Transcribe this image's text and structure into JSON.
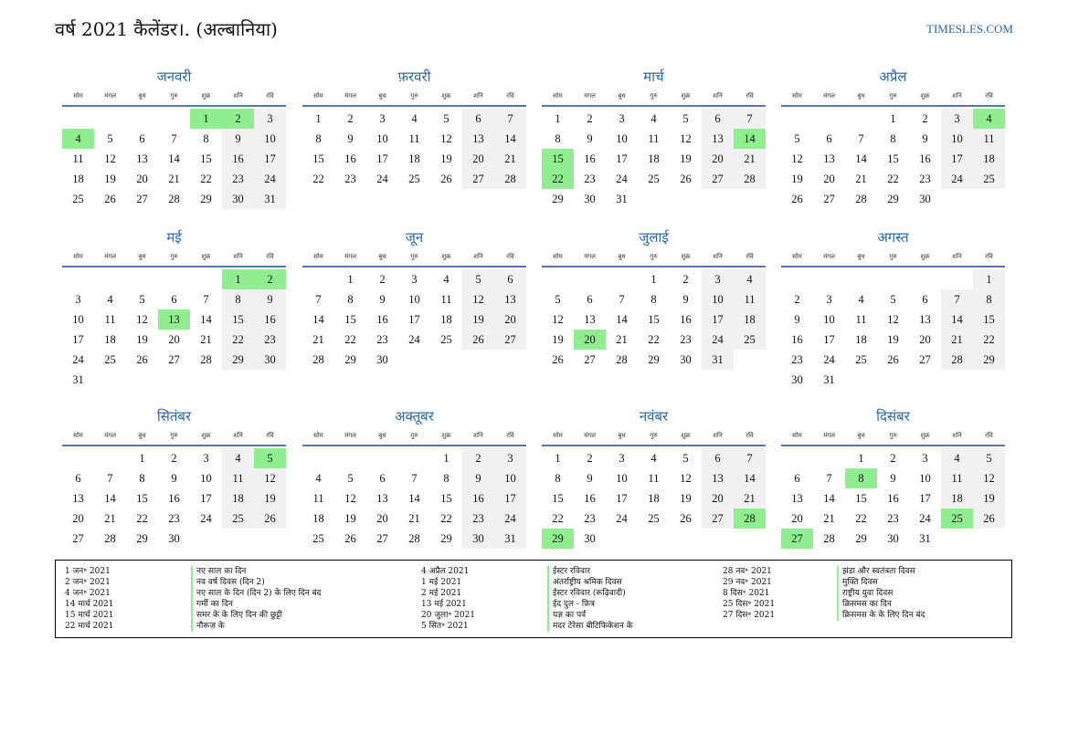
{
  "title": "वर्ष 2021 कैलेंडर।. (अल्बानिया)",
  "site": "TIMESLES.COM",
  "weekdays": [
    "सोम",
    "मंगल",
    "बुध",
    "गुरु",
    "शुक्र",
    "शनि",
    "रवि"
  ],
  "months": [
    {
      "name": "जनवरी",
      "offset": 4,
      "days": 31,
      "holidays": [
        1,
        2,
        4
      ]
    },
    {
      "name": "फ़रवरी",
      "offset": 0,
      "days": 28,
      "holidays": []
    },
    {
      "name": "मार्च",
      "offset": 0,
      "days": 31,
      "holidays": [
        14,
        15,
        22
      ]
    },
    {
      "name": "अप्रैल",
      "offset": 3,
      "days": 30,
      "holidays": [
        4
      ]
    },
    {
      "name": "मई",
      "offset": 5,
      "days": 31,
      "holidays": [
        1,
        2,
        13
      ]
    },
    {
      "name": "जून",
      "offset": 1,
      "days": 30,
      "holidays": []
    },
    {
      "name": "जुलाई",
      "offset": 3,
      "days": 31,
      "holidays": [
        20
      ]
    },
    {
      "name": "अगस्त",
      "offset": 6,
      "days": 31,
      "holidays": []
    },
    {
      "name": "सितंबर",
      "offset": 2,
      "days": 30,
      "holidays": [
        5
      ]
    },
    {
      "name": "अक्तूबर",
      "offset": 4,
      "days": 31,
      "holidays": []
    },
    {
      "name": "नवंबर",
      "offset": 0,
      "days": 30,
      "holidays": [
        28,
        29
      ]
    },
    {
      "name": "दिसंबर",
      "offset": 2,
      "days": 31,
      "holidays": [
        8,
        25,
        27
      ]
    }
  ],
  "legend": [
    {
      "dates": [
        "1 जन॰ 2021",
        "2 जन॰ 2021",
        "4 जन॰ 2021",
        "14 मार्च 2021",
        "15 मार्च 2021",
        "22 मार्च 2021"
      ],
      "names": [
        "नए साल का दिन",
        "नव वर्ष दिवस (दिन 2)",
        "नए साल के दिन (दिन 2) के लिए दिन बंद",
        "गर्मी का दिन",
        "समर के के लिए दिन की छुट्टी",
        "नौरूज़ के"
      ]
    },
    {
      "dates": [
        "4 अप्रैल 2021",
        "1 मई 2021",
        "2 मई 2021",
        "13 मई 2021",
        "20 जुला॰ 2021",
        "5 सित॰ 2021"
      ],
      "names": [
        "ईस्टर रविवार",
        "अंतर्राष्ट्रीय श्रमिक दिवस",
        "ईस्टर रविवार (रूढ़िवादी)",
        "ईद दुल - फ़ित्र",
        "यज्ञ का पर्व",
        "मदर टेरेसा बीटिफिकेशन के"
      ]
    },
    {
      "dates": [
        "28 नव॰ 2021",
        "29 नव॰ 2021",
        "8 दिस॰ 2021",
        "25 दिस॰ 2021",
        "27 दिस॰ 2021"
      ],
      "names": [
        "झंडा और स्वतंत्रता दिवस",
        "मुक्ति दिवस",
        "राष्ट्रीय युवा दिवस",
        "क्रिसमस का दिन",
        "क्रिसमस के के लिए दिन बंद"
      ]
    }
  ],
  "colors": {
    "accent": "#2a67a8",
    "holiday": "#90ee90",
    "weekend": "#f1f1f1"
  }
}
